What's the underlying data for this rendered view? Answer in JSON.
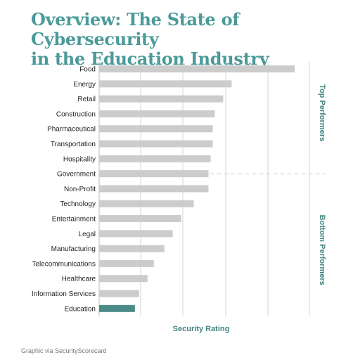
{
  "title": "Overview: The State of Cybersecurity\nin the Education Industry",
  "credit": "Graphic via SecurityScorecard",
  "colors": {
    "title": "#4a9a99",
    "bar": "#cccccc",
    "highlight": "#4a8b87",
    "grid": "#d5d5d5",
    "group_label": "#3f8481",
    "axis_title": "#3f8481",
    "category_label": "#222222"
  },
  "chart_data": {
    "type": "bar",
    "orientation": "horizontal",
    "xlabel": "Security Rating",
    "ylabel": "",
    "xlim": [
      0,
      100
    ],
    "x_tick_labels": false,
    "grid": true,
    "highlight_category": "Education",
    "categories": [
      "Food",
      "Energy",
      "Retail",
      "Construction",
      "Pharmaceutical",
      "Transportation",
      "Hospitality",
      "Government",
      "Non-Profit",
      "Technology",
      "Entertainment",
      "Legal",
      "Manufacturing",
      "Telecommunications",
      "Healthcare",
      "Information Services",
      "Education"
    ],
    "values": [
      93,
      63,
      59,
      55,
      54,
      54,
      53,
      52,
      52,
      45,
      39,
      35,
      31,
      26,
      23,
      19,
      17
    ],
    "groups": [
      {
        "label": "Top Performers",
        "from": "Food",
        "to": "Government"
      },
      {
        "label": "Bottom Performers",
        "from": "Non-Profit",
        "to": "Education"
      }
    ]
  }
}
